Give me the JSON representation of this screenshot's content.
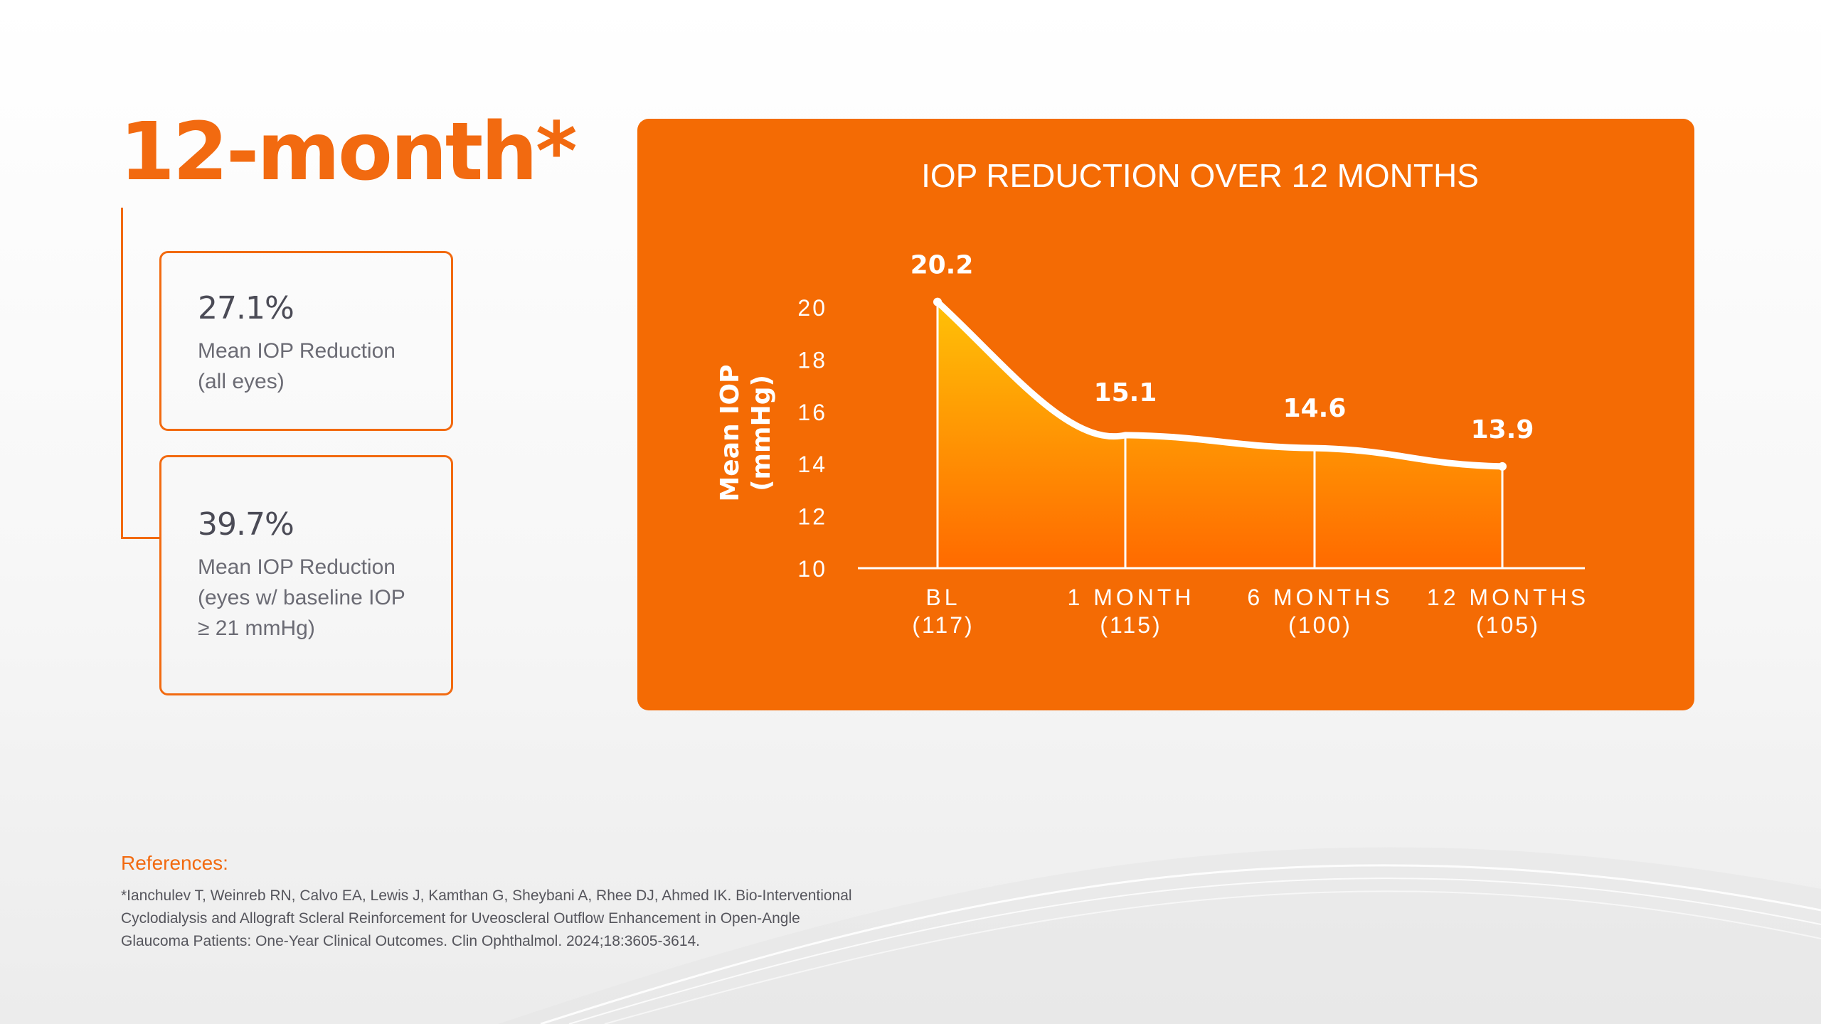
{
  "headline": "12-month*",
  "stats": [
    {
      "value": "27.1%",
      "description": "Mean IOP Reduction\n(all eyes)"
    },
    {
      "value": "39.7%",
      "description": "Mean IOP Reduction\n(eyes w/ baseline IOP\n≥ 21 mmHg)"
    }
  ],
  "chart_data": {
    "type": "area",
    "title": "IOP REDUCTION OVER 12 MONTHS",
    "ylabel": [
      "Mean IOP",
      "(mmHg)"
    ],
    "xlabel": "",
    "categories": [
      "BL",
      "1 MONTH",
      "6 MONTHS",
      "12 MONTHS"
    ],
    "category_counts": [
      "(117)",
      "(115)",
      "(100)",
      "(105)"
    ],
    "values": [
      20.2,
      15.1,
      14.6,
      13.9
    ],
    "data_labels": [
      "20.2",
      "15.1",
      "14.6",
      "13.9"
    ],
    "yticks": [
      10,
      12,
      14,
      16,
      18,
      20
    ],
    "ylim": [
      10,
      20
    ],
    "grid": false,
    "colors": {
      "panel": "#f46b04",
      "area_top": "#ffc107",
      "area_bottom": "#ff6a00",
      "line": "#ffffff"
    }
  },
  "references": {
    "label": "References:",
    "text": "*Ianchulev T, Weinreb RN, Calvo EA, Lewis J, Kamthan G, Sheybani A, Rhee DJ, Ahmed IK. Bio-Interventional\nCyclodialysis and Allograft Scleral Reinforcement for Uveoscleral Outflow Enhancement in Open-Angle\nGlaucoma Patients: One-Year Clinical Outcomes. Clin Ophthalmol. 2024;18:3605-3614."
  }
}
